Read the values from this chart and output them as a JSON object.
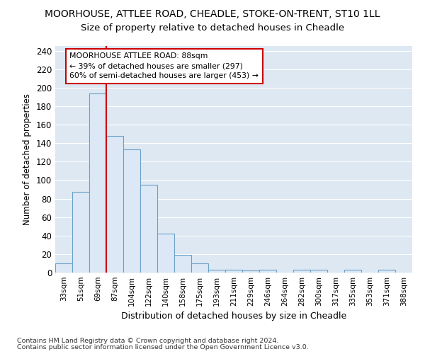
{
  "title1": "MOORHOUSE, ATTLEE ROAD, CHEADLE, STOKE-ON-TRENT, ST10 1LL",
  "title2": "Size of property relative to detached houses in Cheadle",
  "xlabel": "Distribution of detached houses by size in Cheadle",
  "ylabel": "Number of detached properties",
  "categories": [
    "33sqm",
    "51sqm",
    "69sqm",
    "87sqm",
    "104sqm",
    "122sqm",
    "140sqm",
    "158sqm",
    "175sqm",
    "193sqm",
    "211sqm",
    "229sqm",
    "246sqm",
    "264sqm",
    "282sqm",
    "300sqm",
    "317sqm",
    "335sqm",
    "353sqm",
    "371sqm",
    "388sqm"
  ],
  "values": [
    10,
    87,
    194,
    148,
    133,
    95,
    42,
    19,
    10,
    3,
    3,
    2,
    3,
    0,
    3,
    3,
    0,
    3,
    0,
    3,
    0
  ],
  "bar_color": "#dce8f5",
  "bar_edge_color": "#6aa0c8",
  "vline_color": "#cc0000",
  "annotation_line1": "MOORHOUSE ATTLEE ROAD: 88sqm",
  "annotation_line2": "← 39% of detached houses are smaller (297)",
  "annotation_line3": "60% of semi-detached houses are larger (453) →",
  "annotation_box_color": "#cc0000",
  "ylim": [
    0,
    245
  ],
  "yticks": [
    0,
    20,
    40,
    60,
    80,
    100,
    120,
    140,
    160,
    180,
    200,
    220,
    240
  ],
  "bg_color": "#dde8f3",
  "footer1": "Contains HM Land Registry data © Crown copyright and database right 2024.",
  "footer2": "Contains public sector information licensed under the Open Government Licence v3.0.",
  "grid_color": "#ffffff",
  "title1_fontsize": 10,
  "title2_fontsize": 9.5
}
